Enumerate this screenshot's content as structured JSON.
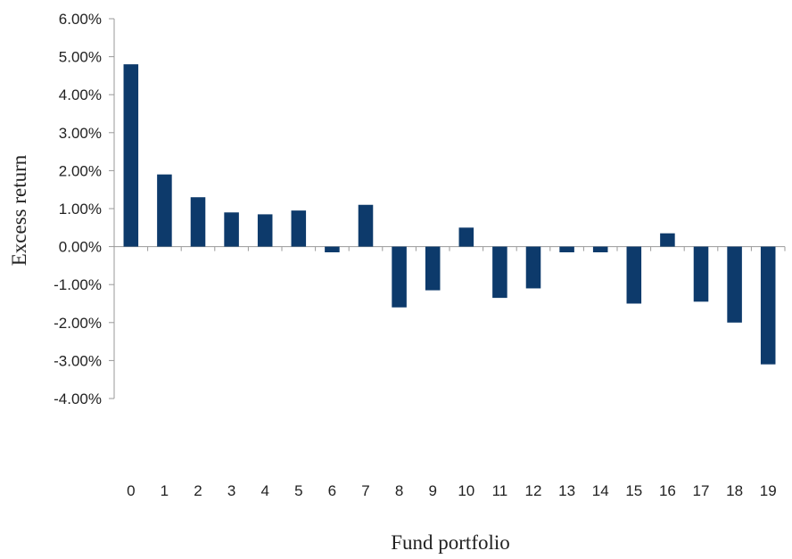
{
  "chart_data": {
    "type": "bar",
    "title": "",
    "xlabel": "Fund portfolio",
    "ylabel": "Excess return",
    "categories": [
      "0",
      "1",
      "2",
      "3",
      "4",
      "5",
      "6",
      "7",
      "8",
      "9",
      "10",
      "11",
      "12",
      "13",
      "14",
      "15",
      "16",
      "17",
      "18",
      "19"
    ],
    "values": [
      4.8,
      1.9,
      1.3,
      0.9,
      0.85,
      0.95,
      -0.15,
      1.1,
      -1.6,
      -1.15,
      0.5,
      -1.35,
      -1.1,
      -0.15,
      -0.15,
      -1.5,
      0.35,
      -1.45,
      -2.0,
      -3.1
    ],
    "ylim": [
      -4,
      6
    ],
    "yticks": [
      6,
      5,
      4,
      3,
      2,
      1,
      0,
      -1,
      -2,
      -3,
      -4
    ],
    "ytick_labels": [
      "6.00%",
      "5.00%",
      "4.00%",
      "3.00%",
      "2.00%",
      "1.00%",
      "0.00%",
      "-1.00%",
      "-2.00%",
      "-3.00%",
      "-4.00%"
    ],
    "grid": false,
    "legend": "none",
    "bar_color": "#0d3a6b",
    "axis_color": "#999999"
  }
}
